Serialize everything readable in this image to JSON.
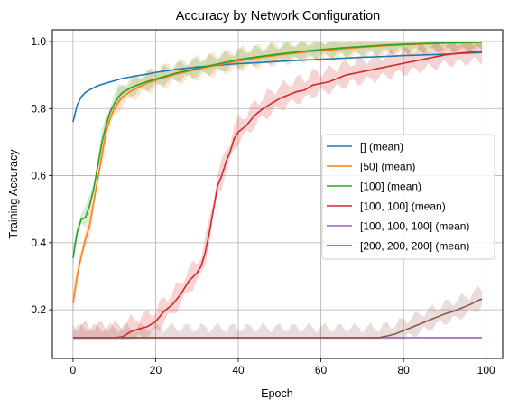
{
  "chart_data": {
    "type": "line",
    "title": "Accuracy by Network Configuration",
    "xlabel": "Epoch",
    "ylabel": "Training Accuracy",
    "xlim": [
      -5,
      104
    ],
    "ylim": [
      0.055,
      1.035
    ],
    "xticks": [
      0,
      20,
      40,
      60,
      80,
      100
    ],
    "yticks": [
      0.2,
      0.4,
      0.6,
      0.8,
      1.0
    ],
    "xtick_labels": [
      "0",
      "20",
      "40",
      "60",
      "80",
      "100"
    ],
    "ytick_labels": [
      "0.2",
      "0.4",
      "0.6",
      "0.8",
      "1.0"
    ],
    "grid": true,
    "legend_position": "center-right",
    "series": [
      {
        "name": "[] (mean)",
        "color": "#1f77b4",
        "points": [
          [
            0,
            0.76
          ],
          [
            1,
            0.81
          ],
          [
            2,
            0.835
          ],
          [
            3,
            0.848
          ],
          [
            4,
            0.856
          ],
          [
            5,
            0.862
          ],
          [
            6,
            0.868
          ],
          [
            8,
            0.876
          ],
          [
            10,
            0.883
          ],
          [
            12,
            0.89
          ],
          [
            15,
            0.897
          ],
          [
            18,
            0.903
          ],
          [
            20,
            0.908
          ],
          [
            25,
            0.917
          ],
          [
            30,
            0.924
          ],
          [
            35,
            0.929
          ],
          [
            40,
            0.934
          ],
          [
            45,
            0.937
          ],
          [
            50,
            0.941
          ],
          [
            55,
            0.944
          ],
          [
            60,
            0.947
          ],
          [
            65,
            0.95
          ],
          [
            70,
            0.953
          ],
          [
            75,
            0.955
          ],
          [
            80,
            0.958
          ],
          [
            85,
            0.96
          ],
          [
            90,
            0.962
          ],
          [
            95,
            0.965
          ],
          [
            99,
            0.967
          ]
        ],
        "band": 0.0
      },
      {
        "name": "[50] (mean)",
        "color": "#ff7f0e",
        "points": [
          [
            0,
            0.22
          ],
          [
            1,
            0.3
          ],
          [
            2,
            0.36
          ],
          [
            3,
            0.41
          ],
          [
            4,
            0.45
          ],
          [
            5,
            0.52
          ],
          [
            6,
            0.59
          ],
          [
            7,
            0.66
          ],
          [
            8,
            0.73
          ],
          [
            9,
            0.77
          ],
          [
            10,
            0.8
          ],
          [
            11,
            0.82
          ],
          [
            12,
            0.835
          ],
          [
            14,
            0.852
          ],
          [
            16,
            0.865
          ],
          [
            18,
            0.876
          ],
          [
            20,
            0.885
          ],
          [
            25,
            0.903
          ],
          [
            30,
            0.917
          ],
          [
            35,
            0.93
          ],
          [
            40,
            0.942
          ],
          [
            45,
            0.952
          ],
          [
            50,
            0.96
          ],
          [
            55,
            0.967
          ],
          [
            60,
            0.973
          ],
          [
            65,
            0.978
          ],
          [
            70,
            0.983
          ],
          [
            75,
            0.987
          ],
          [
            80,
            0.99
          ],
          [
            85,
            0.993
          ],
          [
            90,
            0.995
          ],
          [
            95,
            0.996
          ],
          [
            99,
            0.997
          ]
        ],
        "band": 0.03
      },
      {
        "name": "[100] (mean)",
        "color": "#2ca02c",
        "points": [
          [
            0,
            0.355
          ],
          [
            1,
            0.43
          ],
          [
            2,
            0.47
          ],
          [
            3,
            0.475
          ],
          [
            4,
            0.51
          ],
          [
            5,
            0.56
          ],
          [
            6,
            0.63
          ],
          [
            7,
            0.7
          ],
          [
            8,
            0.75
          ],
          [
            9,
            0.79
          ],
          [
            10,
            0.815
          ],
          [
            11,
            0.835
          ],
          [
            12,
            0.848
          ],
          [
            14,
            0.862
          ],
          [
            16,
            0.872
          ],
          [
            18,
            0.881
          ],
          [
            20,
            0.888
          ],
          [
            25,
            0.906
          ],
          [
            30,
            0.92
          ],
          [
            35,
            0.933
          ],
          [
            40,
            0.946
          ],
          [
            45,
            0.955
          ],
          [
            50,
            0.963
          ],
          [
            55,
            0.97
          ],
          [
            60,
            0.976
          ],
          [
            65,
            0.981
          ],
          [
            70,
            0.985
          ],
          [
            75,
            0.989
          ],
          [
            80,
            0.992
          ],
          [
            85,
            0.994
          ],
          [
            90,
            0.996
          ],
          [
            95,
            0.997
          ],
          [
            99,
            0.998
          ]
        ],
        "band": 0.025
      },
      {
        "name": "[100, 100] (mean)",
        "color": "#d62728",
        "points": [
          [
            0,
            0.117
          ],
          [
            10,
            0.117
          ],
          [
            12,
            0.12
          ],
          [
            14,
            0.135
          ],
          [
            16,
            0.143
          ],
          [
            18,
            0.15
          ],
          [
            20,
            0.165
          ],
          [
            22,
            0.195
          ],
          [
            24,
            0.215
          ],
          [
            26,
            0.245
          ],
          [
            28,
            0.285
          ],
          [
            30,
            0.31
          ],
          [
            31,
            0.33
          ],
          [
            32,
            0.37
          ],
          [
            33,
            0.43
          ],
          [
            34,
            0.5
          ],
          [
            35,
            0.57
          ],
          [
            36,
            0.6
          ],
          [
            37,
            0.64
          ],
          [
            38,
            0.67
          ],
          [
            39,
            0.71
          ],
          [
            40,
            0.73
          ],
          [
            42,
            0.75
          ],
          [
            44,
            0.78
          ],
          [
            46,
            0.8
          ],
          [
            48,
            0.815
          ],
          [
            50,
            0.83
          ],
          [
            52,
            0.84
          ],
          [
            54,
            0.85
          ],
          [
            56,
            0.855
          ],
          [
            58,
            0.87
          ],
          [
            60,
            0.875
          ],
          [
            62,
            0.88
          ],
          [
            64,
            0.89
          ],
          [
            66,
            0.9
          ],
          [
            68,
            0.905
          ],
          [
            70,
            0.91
          ],
          [
            72,
            0.915
          ],
          [
            74,
            0.92
          ],
          [
            76,
            0.925
          ],
          [
            78,
            0.93
          ],
          [
            80,
            0.935
          ],
          [
            82,
            0.94
          ],
          [
            84,
            0.945
          ],
          [
            86,
            0.95
          ],
          [
            88,
            0.955
          ],
          [
            90,
            0.96
          ],
          [
            92,
            0.963
          ],
          [
            94,
            0.966
          ],
          [
            96,
            0.968
          ],
          [
            98,
            0.97
          ],
          [
            99,
            0.972
          ]
        ],
        "band": 0.035
      },
      {
        "name": "[100, 100, 100] (mean)",
        "color": "#9467bd",
        "points": [
          [
            0,
            0.117
          ],
          [
            99,
            0.117
          ]
        ],
        "band": 0.0
      },
      {
        "name": "[200, 200, 200] (mean)",
        "color": "#8c564b",
        "points": [
          [
            0,
            0.117
          ],
          [
            74,
            0.117
          ],
          [
            76,
            0.122
          ],
          [
            78,
            0.128
          ],
          [
            80,
            0.138
          ],
          [
            82,
            0.148
          ],
          [
            84,
            0.158
          ],
          [
            86,
            0.168
          ],
          [
            88,
            0.178
          ],
          [
            90,
            0.188
          ],
          [
            92,
            0.195
          ],
          [
            94,
            0.205
          ],
          [
            96,
            0.215
          ],
          [
            98,
            0.228
          ],
          [
            99,
            0.232
          ]
        ],
        "band": 0.03
      }
    ]
  }
}
